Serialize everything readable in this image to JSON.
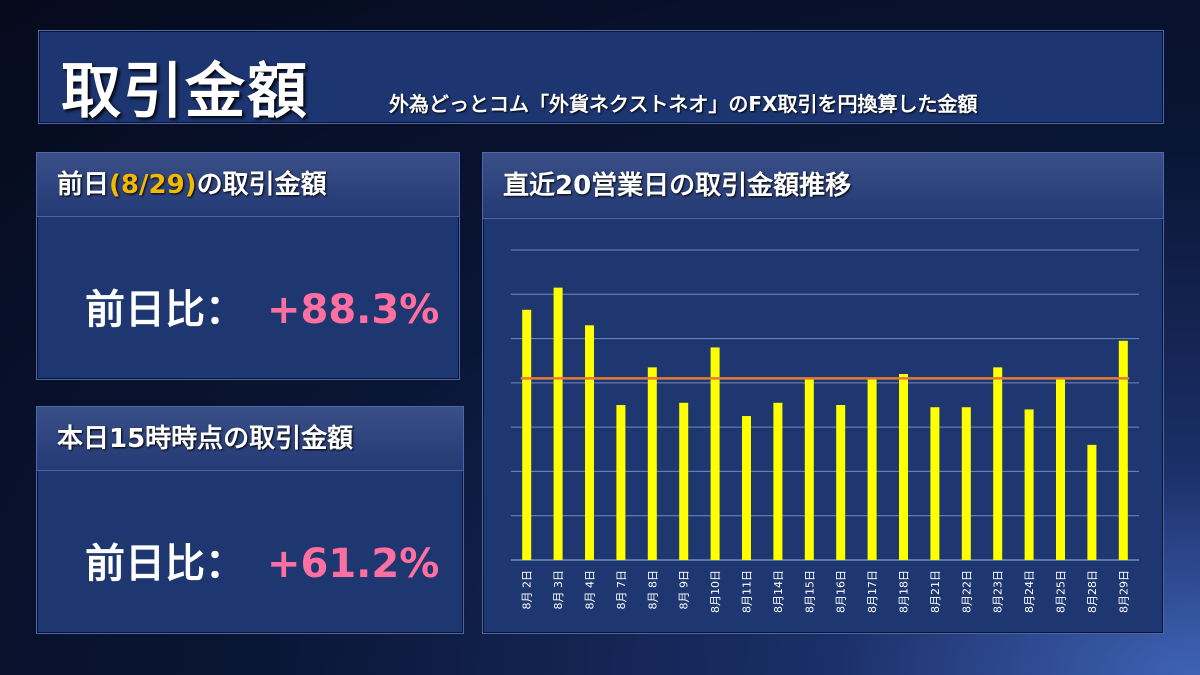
{
  "header": {
    "title": "取引金額",
    "subtitle": "外為どっとコム「外貨ネクストネオ」のFX取引を円換算した金額"
  },
  "prev_day": {
    "heading_pre": "前日",
    "heading_date": "(8/29)",
    "heading_post": "の取引金額",
    "label": "前日比：",
    "value": "+88.3%"
  },
  "today": {
    "heading": "本日15時時点の取引金額",
    "label": "前日比：",
    "value": "+61.2%"
  },
  "chart_panel": {
    "heading": "直近20営業日の取引金額推移"
  },
  "chart_data": {
    "type": "bar",
    "categories": [
      "8月 2日",
      "8月 3日",
      "8月 4日",
      "8月 7日",
      "8月 8日",
      "8月 9日",
      "8月10日",
      "8月11日",
      "8月14日",
      "8月15日",
      "8月16日",
      "8月17日",
      "8月18日",
      "8月21日",
      "8月22日",
      "8月23日",
      "8月24日",
      "8月25日",
      "8月28日",
      "8月29日"
    ],
    "values": [
      5.65,
      6.15,
      5.3,
      3.5,
      4.35,
      3.55,
      4.8,
      3.25,
      3.55,
      4.1,
      3.5,
      4.1,
      4.2,
      3.45,
      3.45,
      4.35,
      3.4,
      4.1,
      2.6,
      4.95
    ],
    "average": 4.1,
    "ylim": [
      0,
      7
    ],
    "grid": true,
    "bar_color": "#ffff00",
    "average_color": "#e07b39"
  }
}
